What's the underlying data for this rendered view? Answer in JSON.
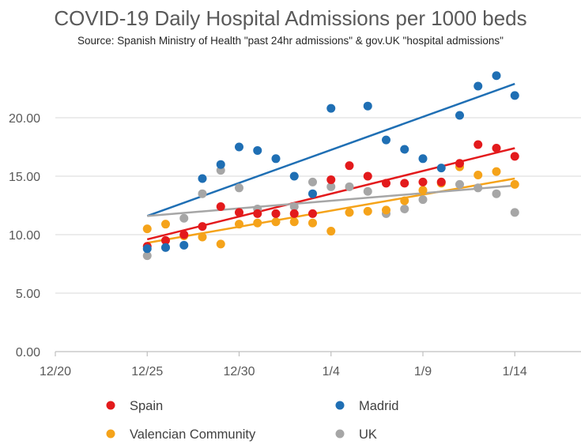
{
  "chart_data": {
    "type": "scatter",
    "title": "COVID-19 Daily Hospital Admissions per 1000 beds",
    "subtitle": "Source: Spanish Ministry of Health \"past 24hr admissions\" & gov.UK \"hospital admissions\"",
    "x_origin": "2020-12-20",
    "x_ticks": [
      {
        "value": 0,
        "label": "12/20"
      },
      {
        "value": 5,
        "label": "12/25"
      },
      {
        "value": 10,
        "label": "12/30"
      },
      {
        "value": 15,
        "label": "1/4"
      },
      {
        "value": 20,
        "label": "1/9"
      },
      {
        "value": 25,
        "label": "1/14"
      }
    ],
    "xlim": [
      0,
      29
    ],
    "ylim": [
      0,
      25
    ],
    "y_ticks": [
      {
        "value": 0,
        "label": "0.00"
      },
      {
        "value": 5,
        "label": "5.00"
      },
      {
        "value": 10,
        "label": "10.00"
      },
      {
        "value": 15,
        "label": "15.00"
      },
      {
        "value": 20,
        "label": "20.00"
      }
    ],
    "gridlines": "horizontal",
    "legend_position": "bottom",
    "series": [
      {
        "name": "Spain",
        "color": "#e31a1c",
        "x": [
          5,
          6,
          7,
          8,
          9,
          10,
          11,
          12,
          13,
          14,
          15,
          16,
          17,
          18,
          19,
          20,
          21,
          22,
          23,
          24,
          25
        ],
        "y": [
          9.0,
          9.5,
          10.0,
          10.7,
          12.4,
          11.9,
          11.8,
          11.8,
          11.8,
          11.8,
          14.7,
          15.9,
          15.0,
          14.4,
          14.4,
          14.5,
          14.5,
          16.1,
          17.7,
          17.4,
          16.7
        ],
        "trend": [
          9.6,
          17.4
        ]
      },
      {
        "name": "Madrid",
        "color": "#1f6fb4",
        "x": [
          5,
          6,
          7,
          8,
          9,
          10,
          11,
          12,
          13,
          14,
          15,
          17,
          18,
          19,
          20,
          21,
          22,
          23,
          24,
          25
        ],
        "y": [
          8.8,
          8.9,
          9.1,
          14.8,
          16.0,
          17.5,
          17.2,
          16.5,
          15.0,
          13.5,
          20.8,
          21.0,
          18.1,
          17.3,
          16.5,
          15.7,
          20.2,
          22.7,
          23.6,
          21.9
        ],
        "trend": [
          11.6,
          22.9
        ]
      },
      {
        "name": "Valencian Community",
        "color": "#f5a31a",
        "x": [
          5,
          6,
          7,
          8,
          9,
          10,
          11,
          12,
          13,
          14,
          15,
          16,
          17,
          18,
          19,
          20,
          21,
          22,
          23,
          24,
          25
        ],
        "y": [
          10.5,
          10.9,
          9.9,
          9.8,
          9.2,
          10.9,
          11.0,
          11.1,
          11.1,
          11.0,
          10.3,
          11.9,
          12.0,
          12.1,
          12.9,
          13.8,
          14.4,
          15.8,
          15.1,
          15.4,
          14.3
        ],
        "trend": [
          9.3,
          14.8
        ]
      },
      {
        "name": "UK",
        "color": "#a6a6a6",
        "x": [
          5,
          6,
          7,
          8,
          9,
          10,
          11,
          12,
          13,
          14,
          15,
          16,
          17,
          18,
          19,
          20,
          21,
          22,
          23,
          24,
          25
        ],
        "y": [
          8.2,
          8.9,
          11.4,
          13.5,
          15.5,
          14.0,
          12.2,
          11.8,
          12.4,
          14.5,
          14.1,
          14.1,
          13.7,
          11.8,
          12.2,
          13.0,
          14.5,
          14.3,
          14.0,
          13.5,
          11.9
        ],
        "trend": [
          11.6,
          14.2
        ]
      }
    ]
  }
}
